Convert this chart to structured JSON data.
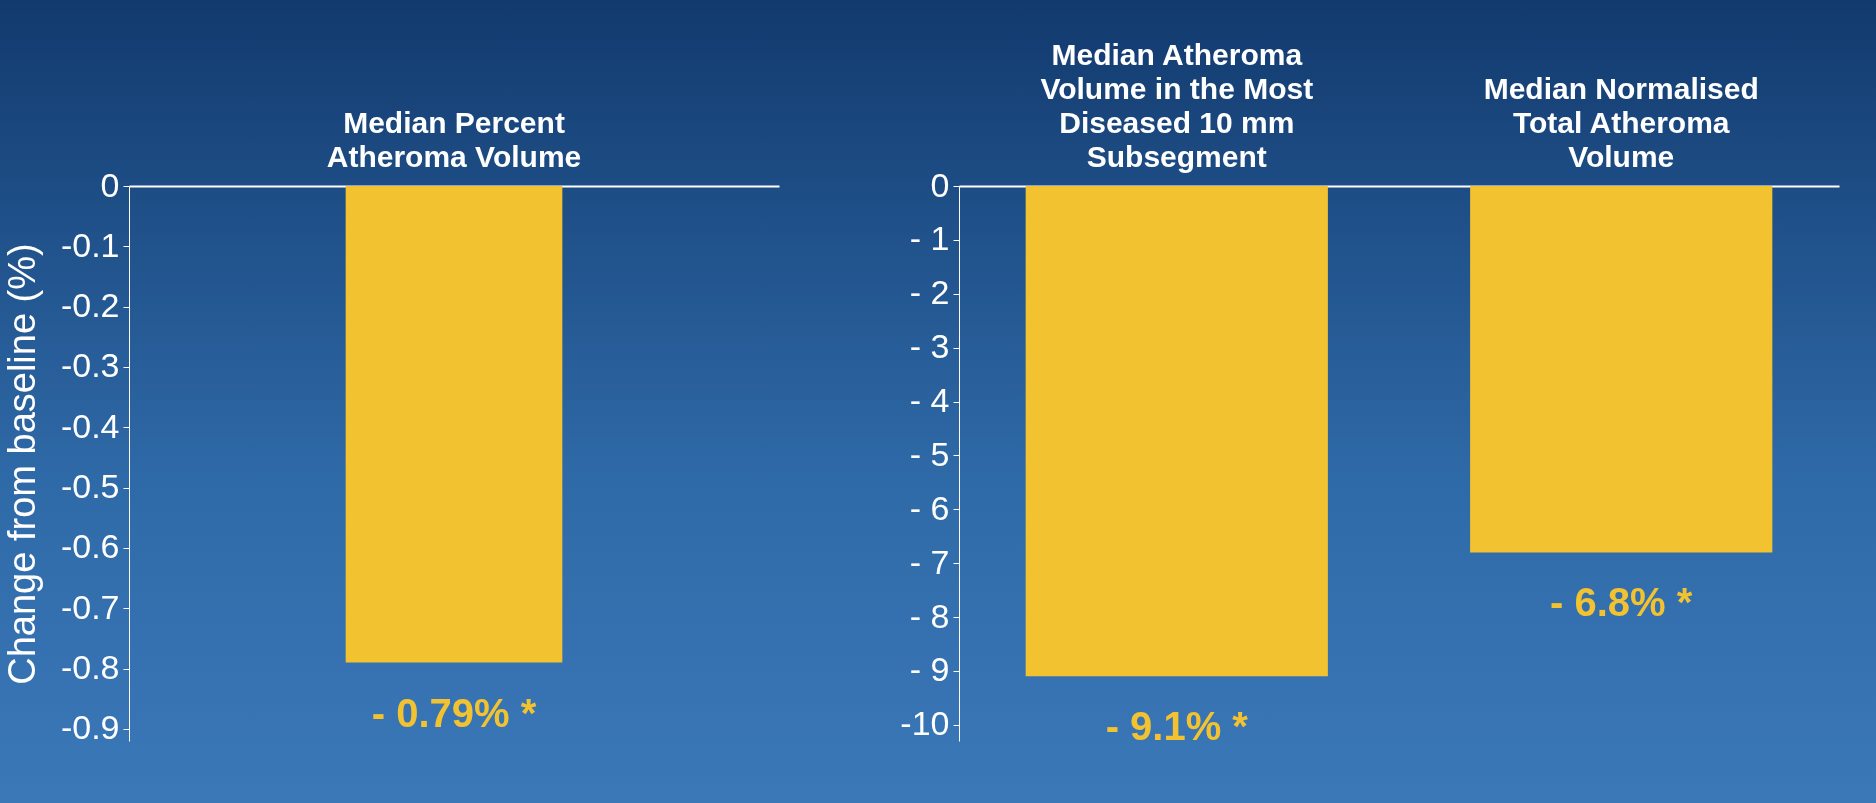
{
  "chart_data": [
    {
      "type": "bar",
      "categories": [
        "Median Percent Atheroma Volume"
      ],
      "values": [
        -0.79
      ],
      "color": "#f2c230",
      "value_labels": [
        "- 0.79% *"
      ],
      "ylabel": "Change from baseline (%)",
      "ylim": [
        -0.92,
        0
      ],
      "yticks": [
        0,
        -0.1,
        -0.2,
        -0.3,
        -0.4,
        -0.5,
        -0.6,
        -0.7,
        -0.8,
        -0.9
      ]
    },
    {
      "type": "bar",
      "categories": [
        "Median Atheroma Volume in the Most Diseased 10 mm Subsegment",
        "Median Normalised Total Atheroma Volume"
      ],
      "values": [
        -9.1,
        -6.8
      ],
      "color": "#f2c230",
      "value_labels": [
        "- 9.1% *",
        "- 6.8% *"
      ],
      "ylim": [
        -10.3,
        0
      ],
      "yticks": [
        0,
        {
          "value": -1,
          "label": "- 1"
        },
        {
          "value": -2,
          "label": "- 2"
        },
        {
          "value": -3,
          "label": "- 3"
        },
        {
          "value": -4,
          "label": "- 4"
        },
        {
          "value": -5,
          "label": "- 5"
        },
        {
          "value": -6,
          "label": "- 6"
        },
        {
          "value": -7,
          "label": "- 7"
        },
        {
          "value": -8,
          "label": "- 8"
        },
        {
          "value": -9,
          "label": "- 9"
        },
        -10
      ]
    }
  ]
}
